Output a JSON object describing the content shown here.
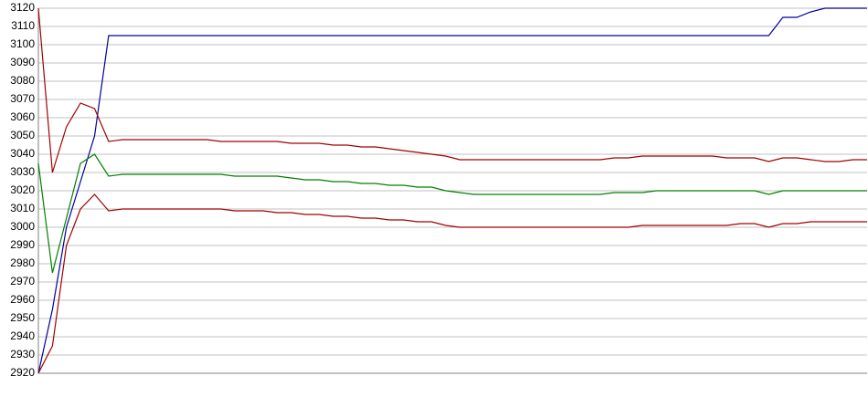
{
  "chart_data": {
    "type": "line",
    "categories": [
      null,
      null,
      null,
      null,
      null,
      null,
      null,
      null,
      null,
      null,
      null,
      null,
      null,
      null,
      null,
      null,
      null,
      null,
      null,
      null,
      null,
      null,
      null,
      null,
      null,
      null,
      null,
      null,
      null,
      null,
      null,
      null,
      null,
      null,
      null,
      null,
      null,
      null,
      null,
      null,
      null,
      null,
      null,
      null,
      null,
      null,
      null,
      null,
      null,
      null,
      null,
      null,
      null,
      null,
      null,
      null,
      null,
      null,
      null,
      null
    ],
    "series": [
      {
        "color": "#0000a0",
        "values": [
          2920,
          2955,
          3000,
          3025,
          3050,
          3105,
          3105,
          3105,
          3105,
          3105,
          3105,
          3105,
          3105,
          3105,
          3105,
          3105,
          3105,
          3105,
          3105,
          3105,
          3105,
          3105,
          3105,
          3105,
          3105,
          3105,
          3105,
          3105,
          3105,
          3105,
          3105,
          3105,
          3105,
          3105,
          3105,
          3105,
          3105,
          3105,
          3105,
          3105,
          3105,
          3105,
          3105,
          3105,
          3105,
          3105,
          3105,
          3105,
          3105,
          3105,
          3105,
          3105,
          3105,
          3115,
          3115,
          3118,
          3120,
          3120,
          3120,
          3120
        ]
      },
      {
        "color": "#a00000",
        "values": [
          3120,
          3030,
          3055,
          3068,
          3065,
          3047,
          3048,
          3048,
          3048,
          3048,
          3048,
          3048,
          3048,
          3047,
          3047,
          3047,
          3047,
          3047,
          3046,
          3046,
          3046,
          3045,
          3045,
          3044,
          3044,
          3043,
          3042,
          3041,
          3040,
          3039,
          3037,
          3037,
          3037,
          3037,
          3037,
          3037,
          3037,
          3037,
          3037,
          3037,
          3037,
          3038,
          3038,
          3039,
          3039,
          3039,
          3039,
          3039,
          3039,
          3038,
          3038,
          3038,
          3036,
          3038,
          3038,
          3037,
          3036,
          3036,
          3037,
          3037
        ]
      },
      {
        "color": "#008000",
        "values": [
          3035,
          2975,
          3005,
          3035,
          3040,
          3028,
          3029,
          3029,
          3029,
          3029,
          3029,
          3029,
          3029,
          3029,
          3028,
          3028,
          3028,
          3028,
          3027,
          3026,
          3026,
          3025,
          3025,
          3024,
          3024,
          3023,
          3023,
          3022,
          3022,
          3020,
          3019,
          3018,
          3018,
          3018,
          3018,
          3018,
          3018,
          3018,
          3018,
          3018,
          3018,
          3019,
          3019,
          3019,
          3020,
          3020,
          3020,
          3020,
          3020,
          3020,
          3020,
          3020,
          3018,
          3020,
          3020,
          3020,
          3020,
          3020,
          3020,
          3020
        ]
      },
      {
        "color": "#a00000",
        "values": [
          2920,
          2935,
          2990,
          3010,
          3018,
          3009,
          3010,
          3010,
          3010,
          3010,
          3010,
          3010,
          3010,
          3010,
          3009,
          3009,
          3009,
          3008,
          3008,
          3007,
          3007,
          3006,
          3006,
          3005,
          3005,
          3004,
          3004,
          3003,
          3003,
          3001,
          3000,
          3000,
          3000,
          3000,
          3000,
          3000,
          3000,
          3000,
          3000,
          3000,
          3000,
          3000,
          3000,
          3001,
          3001,
          3001,
          3001,
          3001,
          3001,
          3001,
          3002,
          3002,
          3000,
          3002,
          3002,
          3003,
          3003,
          3003,
          3003,
          3003
        ]
      }
    ],
    "ylim": [
      2920,
      3120
    ],
    "yticks": [
      2920,
      2930,
      2940,
      2950,
      2960,
      2970,
      2980,
      2990,
      3000,
      3010,
      3020,
      3030,
      3040,
      3050,
      3060,
      3070,
      3080,
      3090,
      3100,
      3110,
      3120
    ],
    "grid": true
  }
}
